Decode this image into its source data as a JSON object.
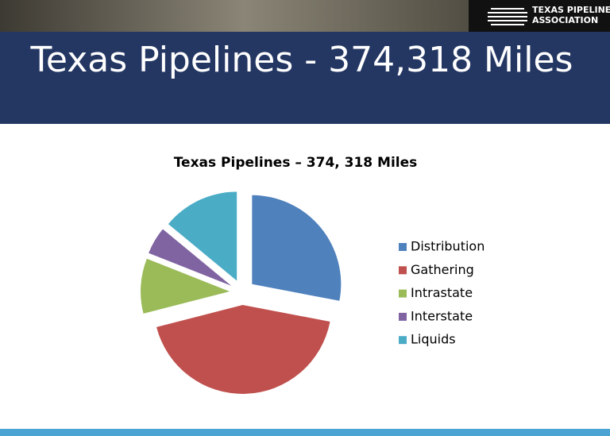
{
  "header": {
    "title": "Texas Pipelines - 374,318 Miles",
    "logo": [
      "TEXAS PIPELINE",
      "ASSOCIATION"
    ]
  },
  "chart_data": {
    "type": "pie",
    "title": "Texas Pipelines – 374, 318 Miles",
    "categories": [
      "Distribution",
      "Gathering",
      "Intrastate",
      "Interstate",
      "Liquids"
    ],
    "values": [
      28,
      43,
      10,
      5,
      14
    ],
    "colors": [
      "#4f81bd",
      "#c0504d",
      "#9bbb59",
      "#8064a2",
      "#4bacc6"
    ],
    "exploded": true
  }
}
